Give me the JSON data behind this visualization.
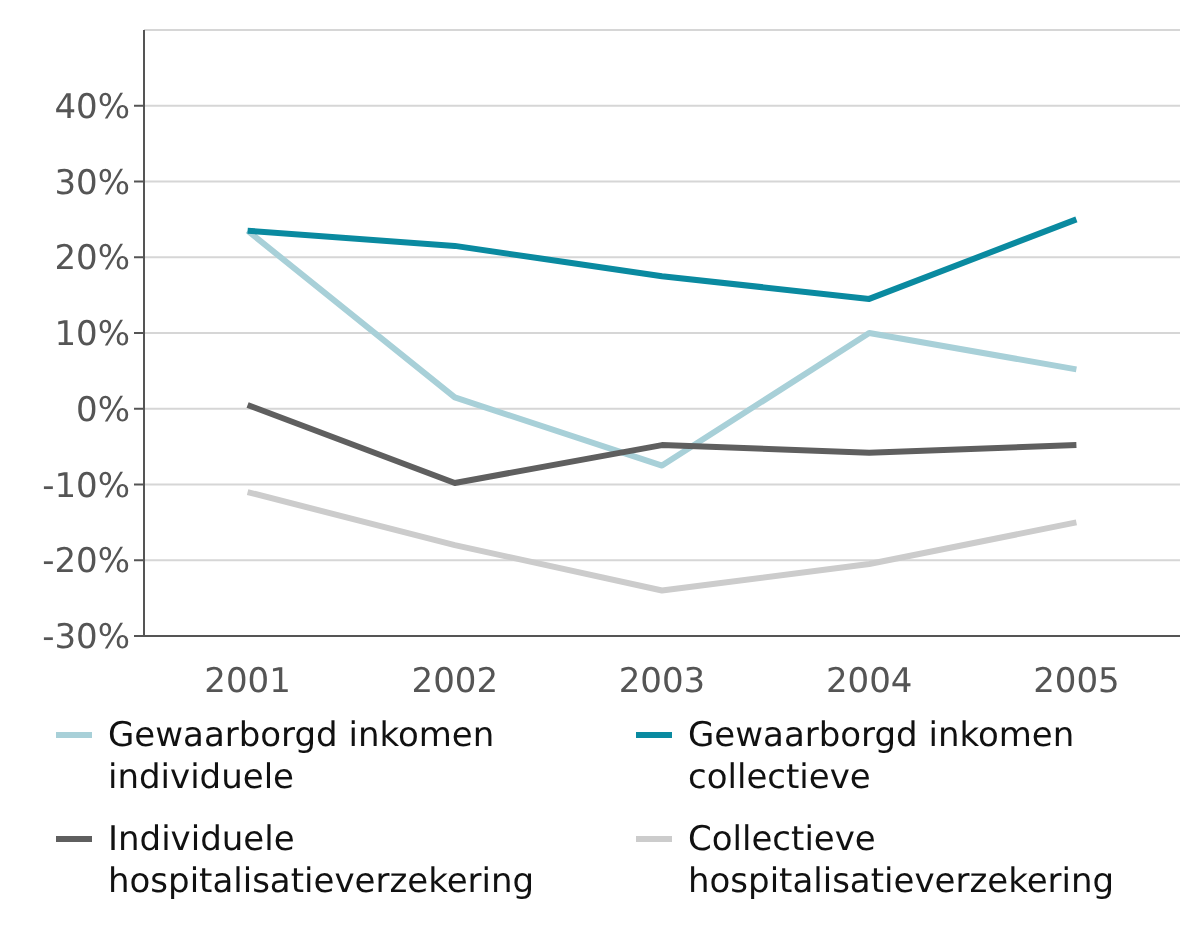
{
  "chart_data": {
    "type": "line",
    "categories": [
      "2001",
      "2002",
      "2003",
      "2004",
      "2005"
    ],
    "series": [
      {
        "name": "Gewaarborgd inkomen individuele",
        "color": "#a8d0d8",
        "values": [
          23.5,
          1.5,
          -7.5,
          10,
          5.2
        ]
      },
      {
        "name": "Gewaarborgd inkomen collectieve",
        "color": "#0a8aa0",
        "values": [
          23.5,
          21.5,
          17.5,
          14.5,
          25
        ]
      },
      {
        "name": "Individuele hospitalisatieverzekering",
        "color": "#5f5f5f",
        "values": [
          0.5,
          -9.8,
          -4.8,
          -5.8,
          -4.8
        ]
      },
      {
        "name": "Collectieve hospitalisatieverzekering",
        "color": "#cccccc",
        "values": [
          -11,
          -18,
          -24,
          -20.5,
          -15
        ]
      }
    ],
    "ylim": [
      -30,
      50
    ],
    "yticks": [
      {
        "value": -30,
        "label": "-30%"
      },
      {
        "value": -20,
        "label": "-20%"
      },
      {
        "value": -10,
        "label": "-10%"
      },
      {
        "value": 0,
        "label": "0%"
      },
      {
        "value": 10,
        "label": "10%"
      },
      {
        "value": 20,
        "label": "20%"
      },
      {
        "value": 30,
        "label": "30%"
      },
      {
        "value": 40,
        "label": "40%"
      }
    ],
    "grid": "y",
    "legend": "bottom",
    "marker": "none",
    "line_style": "solid"
  }
}
